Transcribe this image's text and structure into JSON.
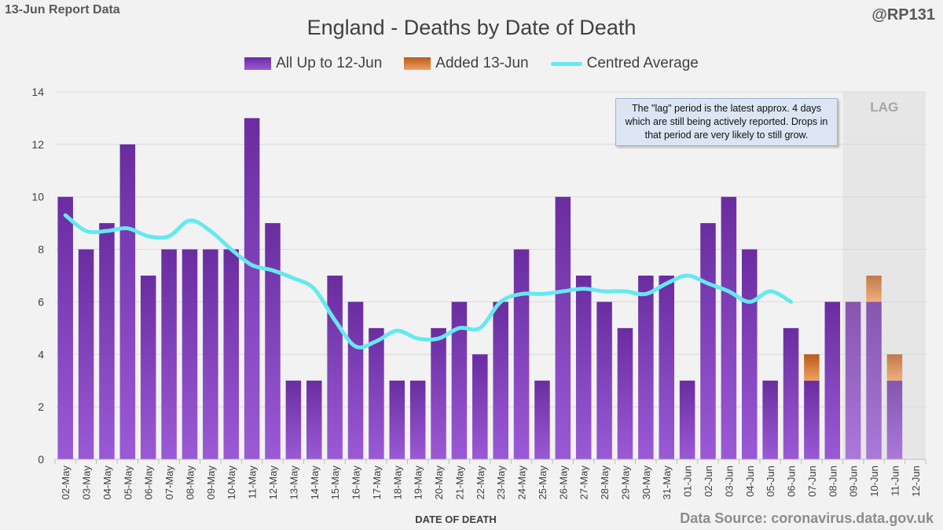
{
  "header": {
    "report_label": "13-Jun Report Data",
    "handle": "@RP131"
  },
  "footer": {
    "source": "Data Source: coronavirus.data.gov.uk"
  },
  "annotation": {
    "text": "The \"lag\" period is the latest approx. 4 days which are still being actively reported.  Drops in that period are very likely to still grow."
  },
  "colors": {
    "base_bar": "#7030a0",
    "added_bar": "#e07b2a",
    "average_line": "#66e8f0",
    "lag_shade": "#e6e6e6"
  },
  "chart_data": {
    "type": "bar",
    "title": "England - Deaths by Date of Death",
    "xlabel": "DATE OF DEATH",
    "ylabel": "",
    "ylim": [
      0,
      14
    ],
    "yticks": [
      0,
      2,
      4,
      6,
      8,
      10,
      12,
      14
    ],
    "lag_label": "LAG",
    "lag_start_category": "09-Jun",
    "categories": [
      "02-May",
      "03-May",
      "04-May",
      "05-May",
      "06-May",
      "07-May",
      "08-May",
      "09-May",
      "10-May",
      "11-May",
      "12-May",
      "13-May",
      "14-May",
      "15-May",
      "16-May",
      "17-May",
      "18-May",
      "19-May",
      "20-May",
      "21-May",
      "22-May",
      "23-May",
      "24-May",
      "25-May",
      "26-May",
      "27-May",
      "28-May",
      "29-May",
      "30-May",
      "31-May",
      "01-Jun",
      "02-Jun",
      "03-Jun",
      "04-Jun",
      "05-Jun",
      "06-Jun",
      "07-Jun",
      "08-Jun",
      "09-Jun",
      "10-Jun",
      "11-Jun",
      "12-Jun"
    ],
    "series": [
      {
        "name": "All Up to 12-Jun",
        "kind": "bar",
        "values": [
          10,
          8,
          9,
          12,
          7,
          8,
          8,
          8,
          8,
          13,
          9,
          3,
          3,
          7,
          6,
          5,
          3,
          3,
          5,
          6,
          4,
          6,
          8,
          3,
          10,
          7,
          6,
          5,
          7,
          7,
          3,
          9,
          10,
          8,
          3,
          5,
          3,
          6,
          6,
          6,
          3,
          0
        ]
      },
      {
        "name": "Added 13-Jun",
        "kind": "bar",
        "values": [
          0,
          0,
          0,
          0,
          0,
          0,
          0,
          0,
          0,
          0,
          0,
          0,
          0,
          0,
          0,
          0,
          0,
          0,
          0,
          0,
          0,
          0,
          0,
          0,
          0,
          0,
          0,
          0,
          0,
          0,
          0,
          0,
          0,
          0,
          0,
          0,
          1,
          0,
          0,
          1,
          1,
          0
        ]
      },
      {
        "name": "Centred Average",
        "kind": "line",
        "values": [
          9.3,
          8.7,
          8.7,
          8.8,
          8.5,
          8.5,
          9.1,
          8.7,
          8.0,
          7.4,
          7.2,
          6.9,
          6.5,
          5.3,
          4.3,
          4.5,
          4.9,
          4.6,
          4.6,
          5.0,
          5.0,
          6.0,
          6.3,
          6.3,
          6.4,
          6.5,
          6.4,
          6.4,
          6.3,
          6.7,
          7.0,
          6.7,
          6.4,
          6.0,
          6.4,
          6.0,
          null,
          null,
          null,
          null,
          null,
          null
        ]
      }
    ]
  }
}
